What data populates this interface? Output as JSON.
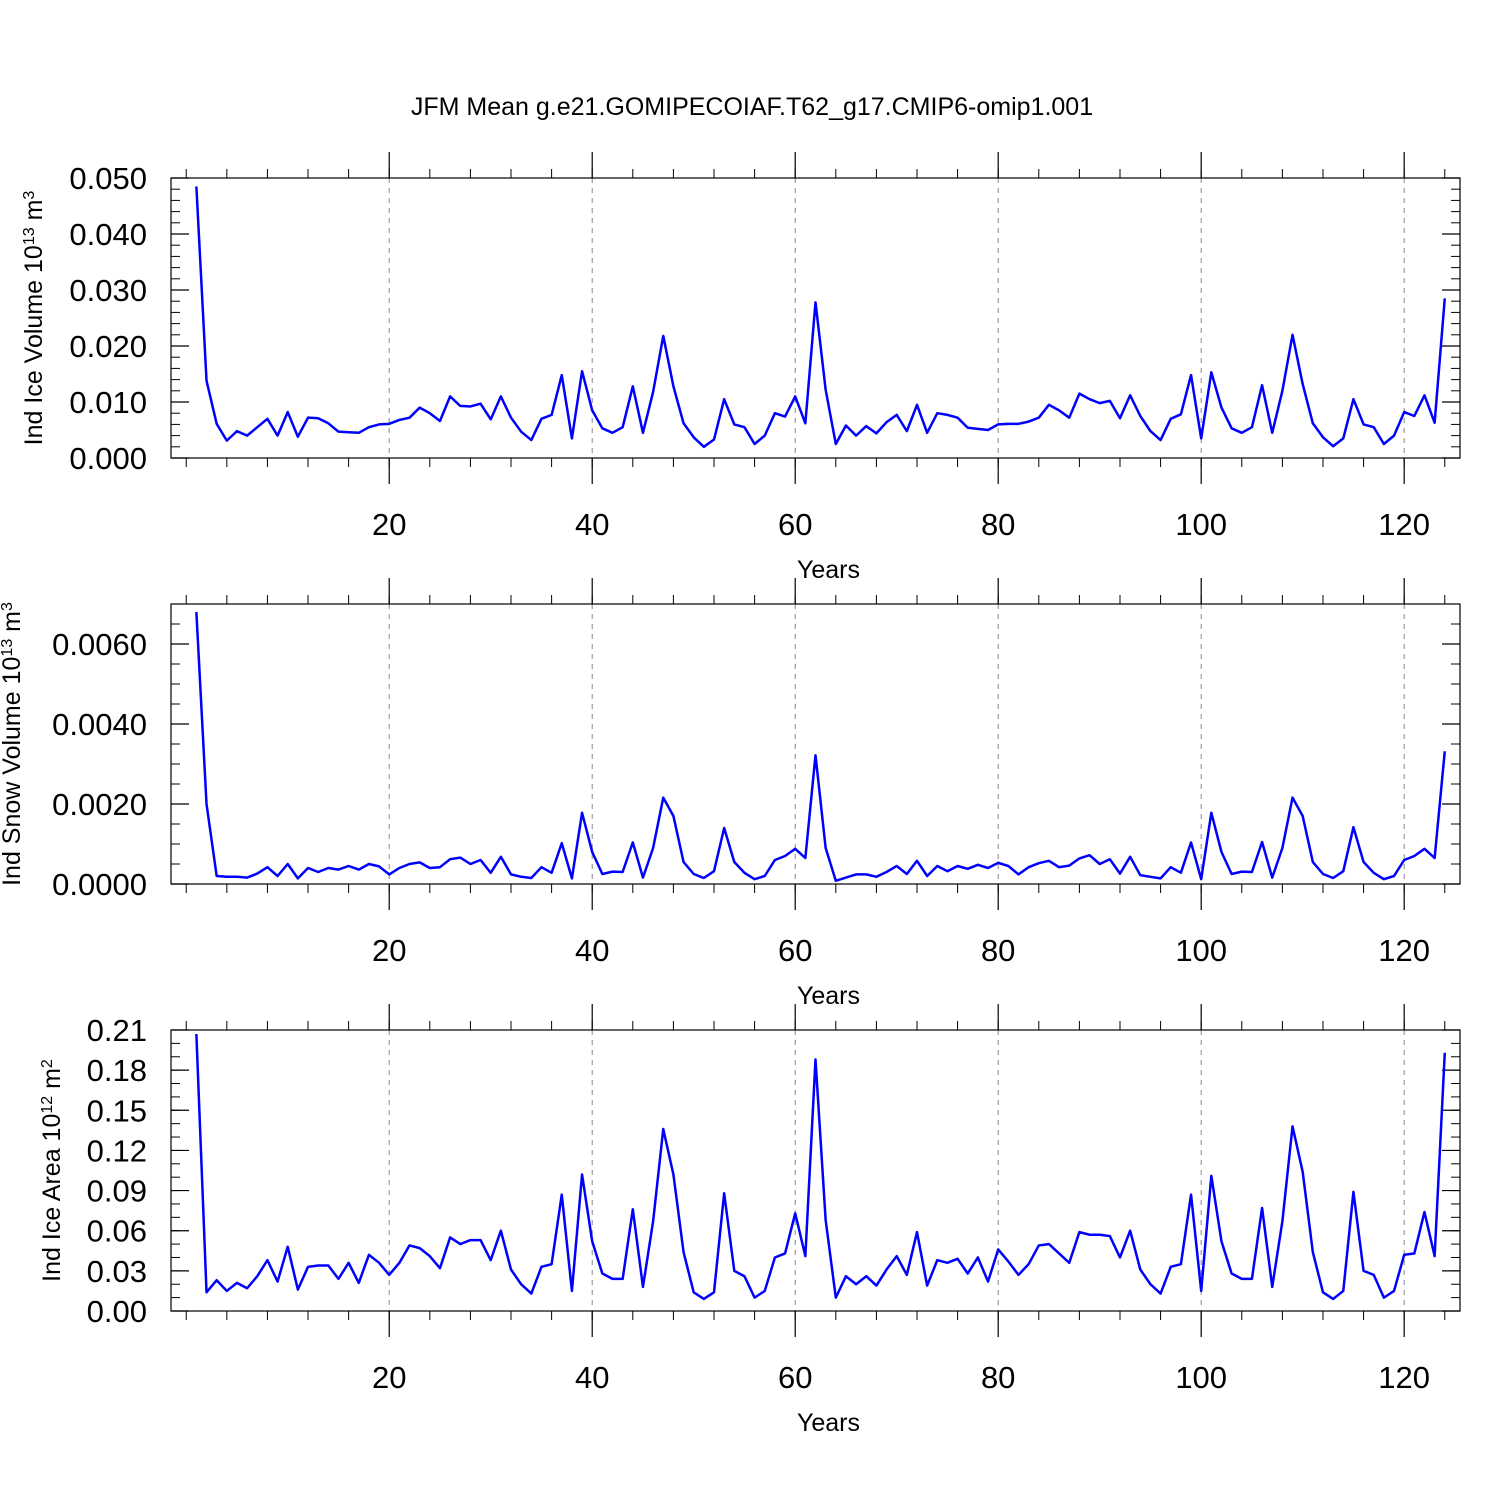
{
  "title": "JFM Mean g.e21.GOMIPECOIAF.T62_g17.CMIP6-omip1.001",
  "line_color": "#0000ff",
  "chart_data": [
    {
      "type": "line",
      "ylabel": "Ind Ice Volume 10",
      "ylabel_sup": "13",
      "ylabel_unit": "m",
      "ylabel_unit_sup": "3",
      "xlabel": "Years",
      "xlim": [
        -1.5,
        125.5
      ],
      "ylim": [
        0,
        0.05
      ],
      "xticks": [
        20,
        40,
        60,
        80,
        100,
        120
      ],
      "xtick_labels": [
        "20",
        "40",
        "60",
        "80",
        "100",
        "120"
      ],
      "yticks": [
        0,
        0.01,
        0.02,
        0.03,
        0.04,
        0.05
      ],
      "ytick_labels": [
        "0.000",
        "0.010",
        "0.020",
        "0.030",
        "0.040",
        "0.050"
      ],
      "yminor": 0.002,
      "grid": "vertical-dashed",
      "x_start": 1,
      "values": [
        0.0485,
        0.0138,
        0.0061,
        0.0031,
        0.0048,
        0.004,
        0.0055,
        0.007,
        0.004,
        0.0082,
        0.0038,
        0.0072,
        0.0071,
        0.0062,
        0.0047,
        0.0046,
        0.0045,
        0.0055,
        0.006,
        0.0061,
        0.0068,
        0.0072,
        0.009,
        0.008,
        0.0066,
        0.011,
        0.0093,
        0.0092,
        0.0097,
        0.0069,
        0.011,
        0.0072,
        0.0047,
        0.0032,
        0.007,
        0.0077,
        0.0148,
        0.0035,
        0.0155,
        0.0085,
        0.0053,
        0.0045,
        0.0055,
        0.0128,
        0.0045,
        0.0118,
        0.0218,
        0.0128,
        0.0062,
        0.0037,
        0.002,
        0.0033,
        0.0105,
        0.006,
        0.0055,
        0.0025,
        0.004,
        0.008,
        0.0074,
        0.011,
        0.0062,
        0.0278,
        0.0122,
        0.0025,
        0.0058,
        0.004,
        0.0057,
        0.0044,
        0.0064,
        0.0077,
        0.0048,
        0.0095,
        0.0045,
        0.008,
        0.0077,
        0.0072,
        0.0054,
        0.0052,
        0.005,
        0.006,
        0.0061,
        0.0061,
        0.0065,
        0.0072,
        0.0095,
        0.0085,
        0.0072,
        0.0115,
        0.0105,
        0.0098,
        0.0102,
        0.0071,
        0.0112,
        0.0075,
        0.0048,
        0.0032,
        0.007,
        0.0078,
        0.0148,
        0.0035,
        0.0153,
        0.009,
        0.0053,
        0.0045,
        0.0055,
        0.013,
        0.0045,
        0.012,
        0.022,
        0.0132,
        0.0062,
        0.0037,
        0.0021,
        0.0035,
        0.0105,
        0.006,
        0.0055,
        0.0025,
        0.004,
        0.0082,
        0.0075,
        0.0112,
        0.0063,
        0.0285
      ]
    },
    {
      "type": "line",
      "ylabel": "Ind Snow Volume 10",
      "ylabel_sup": "13",
      "ylabel_unit": "m",
      "ylabel_unit_sup": "3",
      "xlabel": "Years",
      "xlim": [
        -1.5,
        125.5
      ],
      "ylim": [
        0,
        0.007
      ],
      "xticks": [
        20,
        40,
        60,
        80,
        100,
        120
      ],
      "xtick_labels": [
        "20",
        "40",
        "60",
        "80",
        "100",
        "120"
      ],
      "yticks": [
        0,
        0.002,
        0.004,
        0.006
      ],
      "ytick_labels": [
        "0.0000",
        "0.0020",
        "0.0040",
        "0.0060"
      ],
      "yminor": 0.0005,
      "grid": "vertical-dashed",
      "x_start": 1,
      "values": [
        0.0068,
        0.002,
        0.0002,
        0.00018,
        0.00018,
        0.00016,
        0.00026,
        0.00042,
        0.0002,
        0.0005,
        0.00014,
        0.0004,
        0.0003,
        0.0004,
        0.00036,
        0.00045,
        0.00036,
        0.0005,
        0.00044,
        0.00024,
        0.0004,
        0.0005,
        0.00054,
        0.0004,
        0.00042,
        0.00062,
        0.00066,
        0.0005,
        0.0006,
        0.00028,
        0.00068,
        0.00024,
        0.00018,
        0.00015,
        0.00042,
        0.00028,
        0.00102,
        0.00014,
        0.00178,
        0.0008,
        0.00025,
        0.00031,
        0.0003,
        0.00104,
        0.00016,
        0.0009,
        0.00216,
        0.0017,
        0.00055,
        0.00025,
        0.00015,
        0.00032,
        0.0014,
        0.00055,
        0.00028,
        0.00012,
        0.0002,
        0.0006,
        0.0007,
        0.00088,
        0.00065,
        0.00322,
        0.0009,
        8e-05,
        0.00016,
        0.00024,
        0.00024,
        0.00018,
        0.0003,
        0.00045,
        0.00025,
        0.00058,
        0.0002,
        0.00045,
        0.00032,
        0.00045,
        0.00038,
        0.00048,
        0.0004,
        0.00053,
        0.00045,
        0.00024,
        0.00042,
        0.00052,
        0.00058,
        0.00042,
        0.00046,
        0.00064,
        0.00072,
        0.0005,
        0.00062,
        0.00026,
        0.00068,
        0.00022,
        0.00018,
        0.00014,
        0.00042,
        0.00028,
        0.00104,
        0.00012,
        0.00178,
        0.0008,
        0.00025,
        0.00031,
        0.0003,
        0.00105,
        0.00016,
        0.0009,
        0.00216,
        0.0017,
        0.00055,
        0.00025,
        0.00015,
        0.00032,
        0.00142,
        0.00055,
        0.00028,
        0.00012,
        0.0002,
        0.0006,
        0.0007,
        0.00088,
        0.00065,
        0.00332
      ]
    },
    {
      "type": "line",
      "ylabel": "Ind Ice Area 10",
      "ylabel_sup": "12",
      "ylabel_unit": "m",
      "ylabel_unit_sup": "2",
      "xlabel": "Years",
      "xlim": [
        -1.5,
        125.5
      ],
      "ylim": [
        0,
        0.21
      ],
      "xticks": [
        20,
        40,
        60,
        80,
        100,
        120
      ],
      "xtick_labels": [
        "20",
        "40",
        "60",
        "80",
        "100",
        "120"
      ],
      "yticks": [
        0,
        0.03,
        0.06,
        0.09,
        0.12,
        0.15,
        0.18,
        0.21
      ],
      "ytick_labels": [
        "0.00",
        "0.03",
        "0.06",
        "0.09",
        "0.12",
        "0.15",
        "0.18",
        "0.21"
      ],
      "yminor": 0.01,
      "grid": "vertical-dashed",
      "x_start": 1,
      "values": [
        0.207,
        0.014,
        0.023,
        0.015,
        0.021,
        0.017,
        0.026,
        0.038,
        0.022,
        0.048,
        0.016,
        0.033,
        0.034,
        0.034,
        0.024,
        0.036,
        0.021,
        0.042,
        0.036,
        0.027,
        0.036,
        0.049,
        0.047,
        0.041,
        0.032,
        0.055,
        0.05,
        0.053,
        0.053,
        0.038,
        0.06,
        0.031,
        0.02,
        0.013,
        0.033,
        0.035,
        0.087,
        0.015,
        0.102,
        0.052,
        0.028,
        0.024,
        0.024,
        0.076,
        0.018,
        0.067,
        0.136,
        0.102,
        0.044,
        0.014,
        0.009,
        0.014,
        0.088,
        0.03,
        0.026,
        0.01,
        0.015,
        0.04,
        0.043,
        0.073,
        0.041,
        0.188,
        0.068,
        0.01,
        0.026,
        0.02,
        0.026,
        0.019,
        0.031,
        0.041,
        0.027,
        0.059,
        0.019,
        0.038,
        0.036,
        0.039,
        0.028,
        0.04,
        0.022,
        0.046,
        0.037,
        0.027,
        0.035,
        0.049,
        0.05,
        0.043,
        0.036,
        0.059,
        0.057,
        0.057,
        0.056,
        0.04,
        0.06,
        0.031,
        0.02,
        0.013,
        0.033,
        0.035,
        0.087,
        0.015,
        0.101,
        0.052,
        0.028,
        0.024,
        0.024,
        0.077,
        0.018,
        0.067,
        0.138,
        0.104,
        0.044,
        0.014,
        0.009,
        0.015,
        0.089,
        0.03,
        0.027,
        0.01,
        0.015,
        0.042,
        0.043,
        0.074,
        0.041,
        0.193
      ]
    }
  ]
}
